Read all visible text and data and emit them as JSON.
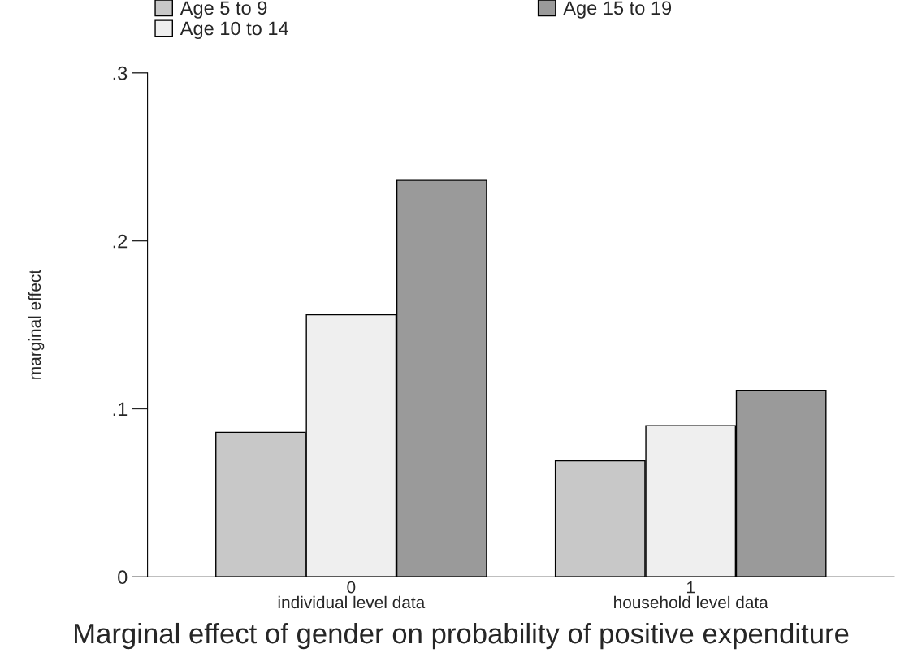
{
  "chart_data": {
    "type": "bar",
    "title": "Marginal effect of gender on probability of positive expenditure",
    "ylabel": "marginal effect",
    "categories": [
      "0\nindividual level data",
      "1\nhousehold level data"
    ],
    "series": [
      {
        "name": "Age 5 to 9",
        "color": "#c8c8c8",
        "values": [
          0.086,
          0.069
        ]
      },
      {
        "name": "Age 10 to 14",
        "color": "#efefef",
        "values": [
          0.156,
          0.09
        ]
      },
      {
        "name": "Age 15 to 19",
        "color": "#9a9a9a",
        "values": [
          0.236,
          0.111
        ]
      }
    ],
    "ylim": [
      0,
      0.3
    ],
    "yticks": [
      {
        "value": 0,
        "label": "0"
      },
      {
        "value": 0.1,
        "label": ".1"
      },
      {
        "value": 0.2,
        "label": ".2"
      },
      {
        "value": 0.3,
        "label": ".3"
      }
    ],
    "grid": false,
    "legend": "top"
  }
}
